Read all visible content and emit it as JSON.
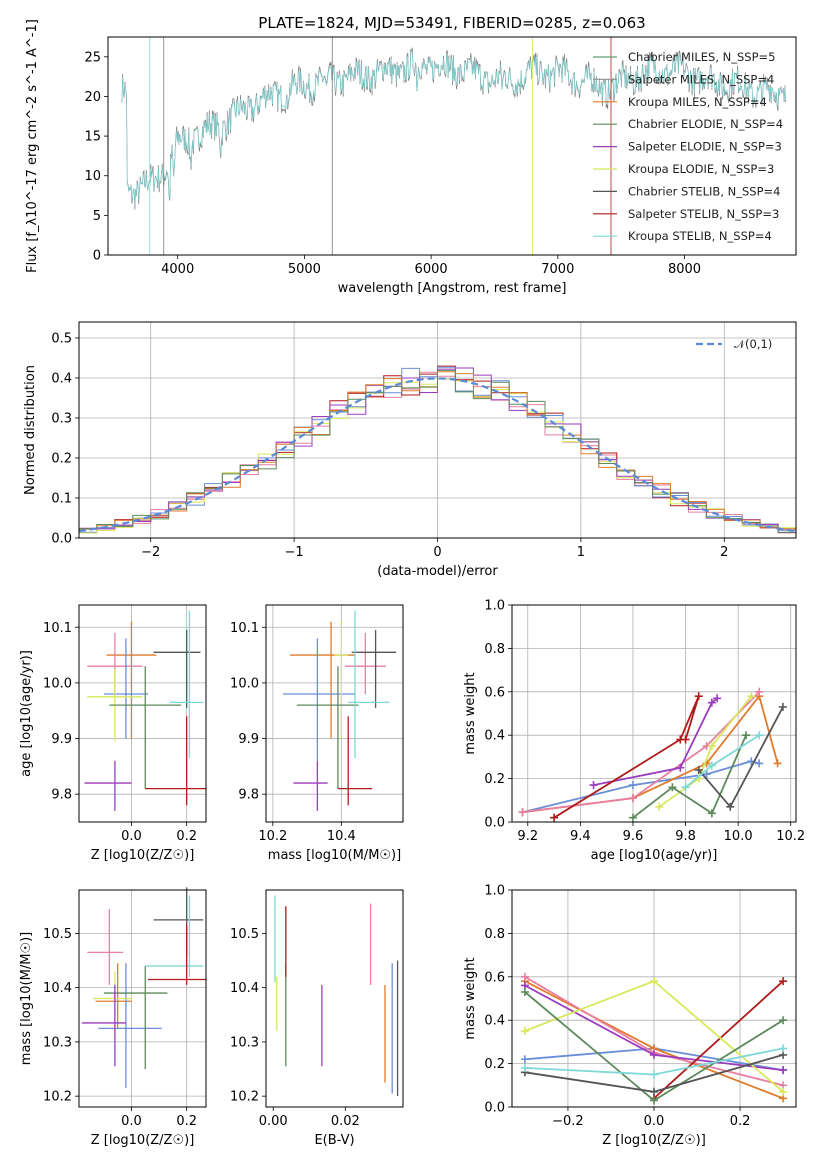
{
  "chart_data": [
    {
      "id": "spectrum",
      "type": "line",
      "title": "PLATE=1824, MJD=53491, FIBERID=0285, z=0.063",
      "xlabel": "wavelength [Angstrom, rest frame]",
      "ylabel": "Flux [f_λ10^-17 erg cm^-2 s^-1 A^-1]",
      "xlim": [
        3450,
        8880
      ],
      "ylim": [
        0,
        27.5
      ],
      "xticks": [
        4000,
        5000,
        6000,
        7000,
        8000
      ],
      "yticks": [
        0,
        5,
        10,
        15,
        20,
        25
      ],
      "grid": false,
      "legend_position": "top-right",
      "series": [
        {
          "name": "Chabrier MILES, N_SSP=5",
          "color": "#5f9f6f"
        },
        {
          "name": "Salpeter MILES, N_SSP=4",
          "color": "#9a9a9a"
        },
        {
          "name": "Kroupa MILES, N_SSP=4",
          "color": "#e07b2a"
        },
        {
          "name": "Chabrier ELODIE, N_SSP=4",
          "color": "#5d8a5a"
        },
        {
          "name": "Salpeter ELODIE, N_SSP=3",
          "color": "#9b3dbf"
        },
        {
          "name": "Kroupa ELODIE, N_SSP=3",
          "color": "#d8e85a"
        },
        {
          "name": "Chabrier STELIB, N_SSP=4",
          "color": "#555555"
        },
        {
          "name": "Salpeter STELIB, N_SSP=3",
          "color": "#b01c1c"
        },
        {
          "name": "Kroupa STELIB, N_SSP=4",
          "color": "#7fd8d8"
        }
      ],
      "continuum": {
        "x": [
          3600,
          3800,
          3900,
          4000,
          4200,
          4400,
          4600,
          4800,
          5000,
          5200,
          5400,
          5600,
          5800,
          6000,
          6200,
          6400,
          6600,
          6800,
          7000,
          7200,
          7400,
          7600,
          7800,
          8000,
          8200,
          8400,
          8600,
          8800
        ],
        "y": [
          8,
          9,
          11,
          14,
          15.5,
          17,
          19,
          20.5,
          21.5,
          22,
          22.5,
          23,
          23.5,
          24,
          23.5,
          22.5,
          22,
          23,
          23,
          22,
          21,
          22.5,
          23.5,
          23,
          22,
          21.5,
          20.5,
          20.5
        ]
      }
    },
    {
      "id": "residuals",
      "type": "histogram",
      "xlabel": "(data-model)/error",
      "ylabel": "Normed distribution",
      "xlim": [
        -2.5,
        2.5
      ],
      "ylim": [
        0,
        0.54
      ],
      "xticks": [
        -2,
        -1,
        0,
        1,
        2
      ],
      "yticks": [
        0.0,
        0.1,
        0.2,
        0.3,
        0.4,
        0.5
      ],
      "grid": true,
      "legend_position": "top-right",
      "reference_curve": {
        "name": "𝒩(0,1)",
        "color": "#5b8ad8",
        "style": "dashed"
      },
      "series_colors": [
        "#e87fa0",
        "#b01c1c",
        "#6a8ed8",
        "#d8e85a",
        "#9b3dbf",
        "#e07b2a",
        "#5d8a5a"
      ]
    },
    {
      "id": "age_vs_Z",
      "type": "errorbar",
      "xlabel": "Z [log10(Z/Z☉)]",
      "ylabel": "age [log10(age/yr)]",
      "xlim": [
        -0.19,
        0.27
      ],
      "ylim": [
        9.75,
        10.14
      ],
      "xticks": [
        0.0,
        0.2
      ],
      "yticks": [
        9.8,
        9.9,
        10.0,
        10.1
      ],
      "grid": true,
      "points": [
        {
          "x": 0.0,
          "xerr": [
            0.09,
            0.09
          ],
          "y": 10.05,
          "yerr": [
            0.15,
            0.06
          ],
          "color": "#e07b2a"
        },
        {
          "x": -0.06,
          "xerr": [
            0.1,
            0.1
          ],
          "y": 10.03,
          "yerr": [
            0.05,
            0.06
          ],
          "color": "#e87fa0"
        },
        {
          "x": -0.02,
          "xerr": [
            0.08,
            0.08
          ],
          "y": 9.98,
          "yerr": [
            0.08,
            0.1
          ],
          "color": "#6a8ed8"
        },
        {
          "x": -0.06,
          "xerr": [
            0.1,
            0.1
          ],
          "y": 9.975,
          "yerr": [
            0.08,
            0.05
          ],
          "color": "#d8e85a"
        },
        {
          "x": 0.05,
          "xerr": [
            0.13,
            0.13
          ],
          "y": 9.96,
          "yerr": [
            0.15,
            0.07
          ],
          "color": "#5d8a5a"
        },
        {
          "x": 0.2,
          "xerr": [
            0.12,
            0.05
          ],
          "y": 10.055,
          "yerr": [
            0.1,
            0.04
          ],
          "color": "#555555"
        },
        {
          "x": 0.21,
          "xerr": [
            0.07,
            0.05
          ],
          "y": 9.965,
          "yerr": [
            0.1,
            0.165
          ],
          "color": "#7fd8d8"
        },
        {
          "x": -0.06,
          "xerr": [
            0.11,
            0.06
          ],
          "y": 9.82,
          "yerr": [
            0.05,
            0.04
          ],
          "color": "#9b3dbf"
        },
        {
          "x": 0.2,
          "xerr": [
            0.15,
            0.07
          ],
          "y": 9.81,
          "yerr": [
            0.03,
            0.13
          ],
          "color": "#b01c1c"
        }
      ]
    },
    {
      "id": "age_vs_mass",
      "type": "errorbar",
      "xlabel": "mass [log10(M/M☉)]",
      "ylabel": "",
      "xlim": [
        10.18,
        10.58
      ],
      "ylim": [
        9.75,
        10.14
      ],
      "xticks": [
        10.2,
        10.4
      ],
      "yticks": [
        9.8,
        9.9,
        10.0,
        10.1
      ],
      "grid": true,
      "points": [
        {
          "x": 10.37,
          "xerr": [
            0.12,
            0.07
          ],
          "y": 10.05,
          "yerr": [
            0.15,
            0.06
          ],
          "color": "#e07b2a"
        },
        {
          "x": 10.47,
          "xerr": [
            0.06,
            0.06
          ],
          "y": 10.03,
          "yerr": [
            0.05,
            0.06
          ],
          "color": "#e87fa0"
        },
        {
          "x": 10.33,
          "xerr": [
            0.1,
            0.11
          ],
          "y": 9.98,
          "yerr": [
            0.12,
            0.1
          ],
          "color": "#6a8ed8"
        },
        {
          "x": 10.4,
          "xerr": [
            0.02,
            0.02
          ],
          "y": 10.05,
          "yerr": [
            0.15,
            0.06
          ],
          "color": "#d8e85a"
        },
        {
          "x": 10.39,
          "xerr": [
            0.12,
            0.06
          ],
          "y": 9.96,
          "yerr": [
            0.15,
            0.07
          ],
          "color": "#5d8a5a"
        },
        {
          "x": 10.5,
          "xerr": [
            0.07,
            0.06
          ],
          "y": 10.055,
          "yerr": [
            0.1,
            0.04
          ],
          "color": "#555555"
        },
        {
          "x": 10.44,
          "xerr": [
            0.02,
            0.1
          ],
          "y": 9.965,
          "yerr": [
            0.1,
            0.165
          ],
          "color": "#7fd8d8"
        },
        {
          "x": 10.33,
          "xerr": [
            0.07,
            0.03
          ],
          "y": 9.82,
          "yerr": [
            0.05,
            0.04
          ],
          "color": "#9b3dbf"
        },
        {
          "x": 10.42,
          "xerr": [
            0.03,
            0.07
          ],
          "y": 9.81,
          "yerr": [
            0.03,
            0.13
          ],
          "color": "#b01c1c"
        }
      ]
    },
    {
      "id": "massweight_vs_age",
      "type": "line",
      "xlabel": "age [log10(age/yr)]",
      "ylabel": "mass weight",
      "xlim": [
        9.14,
        10.22
      ],
      "ylim": [
        0,
        1.0
      ],
      "xticks": [
        9.2,
        9.4,
        9.6,
        9.8,
        10.0,
        10.2
      ],
      "yticks": [
        0.0,
        0.2,
        0.4,
        0.6,
        0.8,
        1.0
      ],
      "grid": true,
      "series": [
        {
          "color": "#6a8ed8",
          "x": [
            9.18,
            9.6,
            9.88,
            10.05,
            10.08
          ],
          "y": [
            0.045,
            0.17,
            0.22,
            0.28,
            0.27
          ]
        },
        {
          "color": "#e07b2a",
          "x": [
            9.18,
            9.6,
            9.88,
            10.08,
            10.15
          ],
          "y": [
            0.045,
            0.11,
            0.27,
            0.58,
            0.27
          ]
        },
        {
          "color": "#e87fa0",
          "x": [
            9.18,
            9.6,
            9.88,
            10.08
          ],
          "y": [
            0.045,
            0.11,
            0.35,
            0.6
          ]
        },
        {
          "color": "#9b3dbf",
          "x": [
            9.45,
            9.78,
            9.9,
            9.92
          ],
          "y": [
            0.17,
            0.25,
            0.55,
            0.57
          ]
        },
        {
          "color": "#b01c1c",
          "x": [
            9.3,
            9.78,
            9.85,
            9.8
          ],
          "y": [
            0.02,
            0.38,
            0.58,
            0.38
          ]
        },
        {
          "color": "#d8e85a",
          "x": [
            9.7,
            9.85,
            9.9,
            10.05
          ],
          "y": [
            0.07,
            0.2,
            0.35,
            0.58
          ]
        },
        {
          "color": "#5d8a5a",
          "x": [
            9.6,
            9.75,
            9.9,
            10.03
          ],
          "y": [
            0.02,
            0.16,
            0.04,
            0.4
          ]
        },
        {
          "color": "#555555",
          "x": [
            9.85,
            9.97,
            10.17
          ],
          "y": [
            0.24,
            0.07,
            0.53
          ]
        },
        {
          "color": "#7fd8d8",
          "x": [
            9.8,
            9.9,
            10.08
          ],
          "y": [
            0.16,
            0.26,
            0.4
          ]
        }
      ]
    },
    {
      "id": "mass_vs_Z",
      "type": "errorbar",
      "xlabel": "Z [log10(Z/Z☉)]",
      "ylabel": "mass [log10(M/M☉)]",
      "xlim": [
        -0.19,
        0.27
      ],
      "ylim": [
        10.18,
        10.58
      ],
      "xticks": [
        0.0,
        0.2
      ],
      "yticks": [
        10.2,
        10.3,
        10.4,
        10.5
      ],
      "grid": true,
      "points": [
        {
          "x": -0.05,
          "xerr": [
            0.08,
            0.05
          ],
          "y": 10.375,
          "yerr": [
            0.05,
            0.07
          ],
          "color": "#e07b2a"
        },
        {
          "x": -0.08,
          "xerr": [
            0.08,
            0.05
          ],
          "y": 10.465,
          "yerr": [
            0.06,
            0.08
          ],
          "color": "#e87fa0"
        },
        {
          "x": -0.02,
          "xerr": [
            0.1,
            0.13
          ],
          "y": 10.325,
          "yerr": [
            0.11,
            0.12
          ],
          "color": "#6a8ed8"
        },
        {
          "x": -0.06,
          "xerr": [
            0.08,
            0.06
          ],
          "y": 10.38,
          "yerr": [
            0.07,
            0.05
          ],
          "color": "#d8e85a"
        },
        {
          "x": 0.05,
          "xerr": [
            0.15,
            0.08
          ],
          "y": 10.39,
          "yerr": [
            0.14,
            0.05
          ],
          "color": "#5d8a5a"
        },
        {
          "x": 0.2,
          "xerr": [
            0.12,
            0.06
          ],
          "y": 10.525,
          "yerr": [
            0.07,
            0.06
          ],
          "color": "#555555"
        },
        {
          "x": 0.21,
          "xerr": [
            0.16,
            0.05
          ],
          "y": 10.44,
          "yerr": [
            0.02,
            0.13
          ],
          "color": "#7fd8d8"
        },
        {
          "x": -0.06,
          "xerr": [
            0.12,
            0.04
          ],
          "y": 10.335,
          "yerr": [
            0.08,
            0.07
          ],
          "color": "#9b3dbf"
        },
        {
          "x": 0.2,
          "xerr": [
            0.14,
            0.07
          ],
          "y": 10.415,
          "yerr": [
            0.01,
            0.1
          ],
          "color": "#b01c1c"
        }
      ]
    },
    {
      "id": "mass_vs_EBV",
      "type": "errorbar",
      "xlabel": "E(B-V)",
      "ylabel": "",
      "xlim": [
        -0.002,
        0.036
      ],
      "ylim": [
        10.18,
        10.58
      ],
      "xticks": [
        0.0,
        0.02
      ],
      "yticks": [
        10.2,
        10.3,
        10.4,
        10.5
      ],
      "grid": false,
      "points": [
        {
          "x": 0.031,
          "y": 10.325,
          "yerr": [
            0.1,
            0.08
          ],
          "color": "#e07b2a"
        },
        {
          "x": 0.027,
          "y": 10.475,
          "yerr": [
            0.07,
            0.08
          ],
          "color": "#e87fa0"
        },
        {
          "x": 0.033,
          "y": 10.325,
          "yerr": [
            0.12,
            0.12
          ],
          "color": "#6a8ed8"
        },
        {
          "x": 0.001,
          "y": 10.37,
          "yerr": [
            0.05,
            0.05
          ],
          "color": "#d8e85a"
        },
        {
          "x": 0.0035,
          "y": 10.395,
          "yerr": [
            0.14,
            0.05
          ],
          "color": "#5d8a5a"
        },
        {
          "x": 0.0345,
          "y": 10.4,
          "yerr": [
            0.2,
            0.05
          ],
          "color": "#555555"
        },
        {
          "x": 0.0005,
          "y": 10.44,
          "yerr": [
            0.03,
            0.13
          ],
          "color": "#7fd8d8"
        },
        {
          "x": 0.0135,
          "y": 10.335,
          "yerr": [
            0.08,
            0.07
          ],
          "color": "#9b3dbf"
        },
        {
          "x": 0.0035,
          "y": 10.42,
          "yerr": [
            0.0,
            0.13
          ],
          "color": "#b01c1c"
        }
      ]
    },
    {
      "id": "massweight_vs_Z",
      "type": "line",
      "xlabel": "Z [log10(Z/Z☉)]",
      "ylabel": "mass weight",
      "xlim": [
        -0.33,
        0.33
      ],
      "ylim": [
        0,
        1.0
      ],
      "xticks": [
        -0.2,
        0.0,
        0.2
      ],
      "yticks": [
        0.0,
        0.2,
        0.4,
        0.6,
        0.8,
        1.0
      ],
      "grid": true,
      "series": [
        {
          "color": "#6a8ed8",
          "x": [
            -0.3,
            0.0,
            0.3
          ],
          "y": [
            0.22,
            0.27,
            0.17
          ]
        },
        {
          "color": "#e07b2a",
          "x": [
            -0.3,
            0.0,
            0.3
          ],
          "y": [
            0.58,
            0.27,
            0.04
          ]
        },
        {
          "color": "#e87fa0",
          "x": [
            -0.3,
            0.0,
            0.3
          ],
          "y": [
            0.6,
            0.25,
            0.1
          ]
        },
        {
          "color": "#9b3dbf",
          "x": [
            -0.3,
            0.0,
            0.3
          ],
          "y": [
            0.56,
            0.24,
            0.17
          ]
        },
        {
          "color": "#b01c1c",
          "x": [
            0.0,
            0.3
          ],
          "y": [
            0.04,
            0.58
          ]
        },
        {
          "color": "#d8e85a",
          "x": [
            -0.3,
            0.0,
            0.3
          ],
          "y": [
            0.35,
            0.58,
            0.07
          ]
        },
        {
          "color": "#5d8a5a",
          "x": [
            -0.3,
            0.0,
            0.3
          ],
          "y": [
            0.53,
            0.03,
            0.4
          ]
        },
        {
          "color": "#555555",
          "x": [
            -0.3,
            0.0,
            0.3
          ],
          "y": [
            0.16,
            0.07,
            0.24
          ]
        },
        {
          "color": "#7fd8d8",
          "x": [
            -0.3,
            0.0,
            0.3
          ],
          "y": [
            0.18,
            0.15,
            0.27
          ]
        }
      ]
    }
  ]
}
